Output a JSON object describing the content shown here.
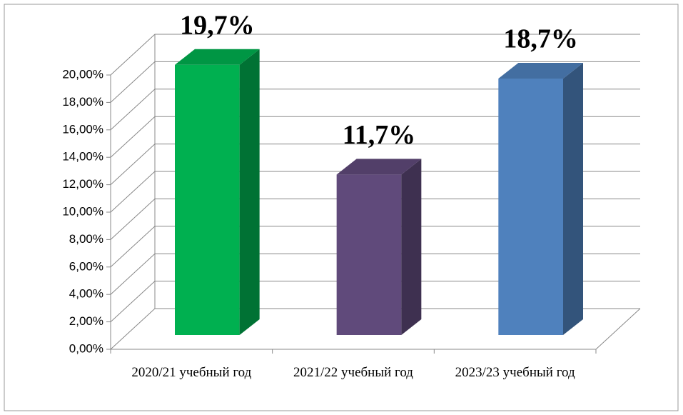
{
  "chart_data": {
    "type": "bar3d",
    "categories": [
      "2020/21 учебный год",
      "2021/22 учебный год",
      "2023/23 учебный год"
    ],
    "values": [
      19.7,
      11.7,
      18.7
    ],
    "value_labels": [
      "19,7%",
      "11,7%",
      "18,7%"
    ],
    "colors": [
      "#00b050",
      "#604a7b",
      "#4f81bd"
    ],
    "ylim": [
      0,
      20
    ],
    "yticks": [
      {
        "value": 0,
        "label": "0,00%"
      },
      {
        "value": 2,
        "label": "2,00%"
      },
      {
        "value": 4,
        "label": "4,00%"
      },
      {
        "value": 6,
        "label": "6,00%"
      },
      {
        "value": 8,
        "label": "8,00%"
      },
      {
        "value": 10,
        "label": "10,00%"
      },
      {
        "value": 12,
        "label": "12,00%"
      },
      {
        "value": 14,
        "label": "14,00%"
      },
      {
        "value": 16,
        "label": "16,00%"
      },
      {
        "value": 18,
        "label": "18,00%"
      },
      {
        "value": 20,
        "label": "20,00%"
      }
    ],
    "grid": true
  }
}
